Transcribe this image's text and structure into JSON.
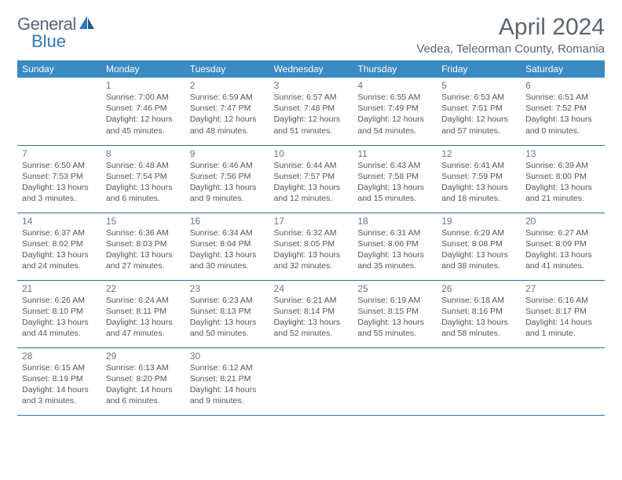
{
  "brand": {
    "part1": "General",
    "part2": "Blue"
  },
  "title": "April 2024",
  "location": "Vedea, Teleorman County, Romania",
  "style": {
    "header_bg": "#3a8ac4",
    "header_text": "#ffffff",
    "border_color": "#2f6ea0",
    "body_text": "#555555",
    "title_color": "#5a6570",
    "daynum_color": "#6a757e",
    "font_family": "Arial",
    "month_fontsize": 30,
    "location_fontsize": 15,
    "header_fontsize": 12,
    "day_fontsize": 12,
    "info_fontsize": 10.5
  },
  "weekdays": [
    "Sunday",
    "Monday",
    "Tuesday",
    "Wednesday",
    "Thursday",
    "Friday",
    "Saturday"
  ],
  "weeks": [
    [
      {
        "day": "",
        "sunrise": "",
        "sunset": "",
        "daylight": ""
      },
      {
        "day": "1",
        "sunrise": "Sunrise: 7:00 AM",
        "sunset": "Sunset: 7:46 PM",
        "daylight": "Daylight: 12 hours and 45 minutes."
      },
      {
        "day": "2",
        "sunrise": "Sunrise: 6:59 AM",
        "sunset": "Sunset: 7:47 PM",
        "daylight": "Daylight: 12 hours and 48 minutes."
      },
      {
        "day": "3",
        "sunrise": "Sunrise: 6:57 AM",
        "sunset": "Sunset: 7:48 PM",
        "daylight": "Daylight: 12 hours and 51 minutes."
      },
      {
        "day": "4",
        "sunrise": "Sunrise: 6:55 AM",
        "sunset": "Sunset: 7:49 PM",
        "daylight": "Daylight: 12 hours and 54 minutes."
      },
      {
        "day": "5",
        "sunrise": "Sunrise: 6:53 AM",
        "sunset": "Sunset: 7:51 PM",
        "daylight": "Daylight: 12 hours and 57 minutes."
      },
      {
        "day": "6",
        "sunrise": "Sunrise: 6:51 AM",
        "sunset": "Sunset: 7:52 PM",
        "daylight": "Daylight: 13 hours and 0 minutes."
      }
    ],
    [
      {
        "day": "7",
        "sunrise": "Sunrise: 6:50 AM",
        "sunset": "Sunset: 7:53 PM",
        "daylight": "Daylight: 13 hours and 3 minutes."
      },
      {
        "day": "8",
        "sunrise": "Sunrise: 6:48 AM",
        "sunset": "Sunset: 7:54 PM",
        "daylight": "Daylight: 13 hours and 6 minutes."
      },
      {
        "day": "9",
        "sunrise": "Sunrise: 6:46 AM",
        "sunset": "Sunset: 7:56 PM",
        "daylight": "Daylight: 13 hours and 9 minutes."
      },
      {
        "day": "10",
        "sunrise": "Sunrise: 6:44 AM",
        "sunset": "Sunset: 7:57 PM",
        "daylight": "Daylight: 13 hours and 12 minutes."
      },
      {
        "day": "11",
        "sunrise": "Sunrise: 6:43 AM",
        "sunset": "Sunset: 7:58 PM",
        "daylight": "Daylight: 13 hours and 15 minutes."
      },
      {
        "day": "12",
        "sunrise": "Sunrise: 6:41 AM",
        "sunset": "Sunset: 7:59 PM",
        "daylight": "Daylight: 13 hours and 18 minutes."
      },
      {
        "day": "13",
        "sunrise": "Sunrise: 6:39 AM",
        "sunset": "Sunset: 8:00 PM",
        "daylight": "Daylight: 13 hours and 21 minutes."
      }
    ],
    [
      {
        "day": "14",
        "sunrise": "Sunrise: 6:37 AM",
        "sunset": "Sunset: 8:02 PM",
        "daylight": "Daylight: 13 hours and 24 minutes."
      },
      {
        "day": "15",
        "sunrise": "Sunrise: 6:36 AM",
        "sunset": "Sunset: 8:03 PM",
        "daylight": "Daylight: 13 hours and 27 minutes."
      },
      {
        "day": "16",
        "sunrise": "Sunrise: 6:34 AM",
        "sunset": "Sunset: 8:04 PM",
        "daylight": "Daylight: 13 hours and 30 minutes."
      },
      {
        "day": "17",
        "sunrise": "Sunrise: 6:32 AM",
        "sunset": "Sunset: 8:05 PM",
        "daylight": "Daylight: 13 hours and 32 minutes."
      },
      {
        "day": "18",
        "sunrise": "Sunrise: 6:31 AM",
        "sunset": "Sunset: 8:06 PM",
        "daylight": "Daylight: 13 hours and 35 minutes."
      },
      {
        "day": "19",
        "sunrise": "Sunrise: 6:29 AM",
        "sunset": "Sunset: 8:08 PM",
        "daylight": "Daylight: 13 hours and 38 minutes."
      },
      {
        "day": "20",
        "sunrise": "Sunrise: 6:27 AM",
        "sunset": "Sunset: 8:09 PM",
        "daylight": "Daylight: 13 hours and 41 minutes."
      }
    ],
    [
      {
        "day": "21",
        "sunrise": "Sunrise: 6:26 AM",
        "sunset": "Sunset: 8:10 PM",
        "daylight": "Daylight: 13 hours and 44 minutes."
      },
      {
        "day": "22",
        "sunrise": "Sunrise: 6:24 AM",
        "sunset": "Sunset: 8:11 PM",
        "daylight": "Daylight: 13 hours and 47 minutes."
      },
      {
        "day": "23",
        "sunrise": "Sunrise: 6:23 AM",
        "sunset": "Sunset: 8:13 PM",
        "daylight": "Daylight: 13 hours and 50 minutes."
      },
      {
        "day": "24",
        "sunrise": "Sunrise: 6:21 AM",
        "sunset": "Sunset: 8:14 PM",
        "daylight": "Daylight: 13 hours and 52 minutes."
      },
      {
        "day": "25",
        "sunrise": "Sunrise: 6:19 AM",
        "sunset": "Sunset: 8:15 PM",
        "daylight": "Daylight: 13 hours and 55 minutes."
      },
      {
        "day": "26",
        "sunrise": "Sunrise: 6:18 AM",
        "sunset": "Sunset: 8:16 PM",
        "daylight": "Daylight: 13 hours and 58 minutes."
      },
      {
        "day": "27",
        "sunrise": "Sunrise: 6:16 AM",
        "sunset": "Sunset: 8:17 PM",
        "daylight": "Daylight: 14 hours and 1 minute."
      }
    ],
    [
      {
        "day": "28",
        "sunrise": "Sunrise: 6:15 AM",
        "sunset": "Sunset: 8:19 PM",
        "daylight": "Daylight: 14 hours and 3 minutes."
      },
      {
        "day": "29",
        "sunrise": "Sunrise: 6:13 AM",
        "sunset": "Sunset: 8:20 PM",
        "daylight": "Daylight: 14 hours and 6 minutes."
      },
      {
        "day": "30",
        "sunrise": "Sunrise: 6:12 AM",
        "sunset": "Sunset: 8:21 PM",
        "daylight": "Daylight: 14 hours and 9 minutes."
      },
      {
        "day": "",
        "sunrise": "",
        "sunset": "",
        "daylight": ""
      },
      {
        "day": "",
        "sunrise": "",
        "sunset": "",
        "daylight": ""
      },
      {
        "day": "",
        "sunrise": "",
        "sunset": "",
        "daylight": ""
      },
      {
        "day": "",
        "sunrise": "",
        "sunset": "",
        "daylight": ""
      }
    ]
  ]
}
